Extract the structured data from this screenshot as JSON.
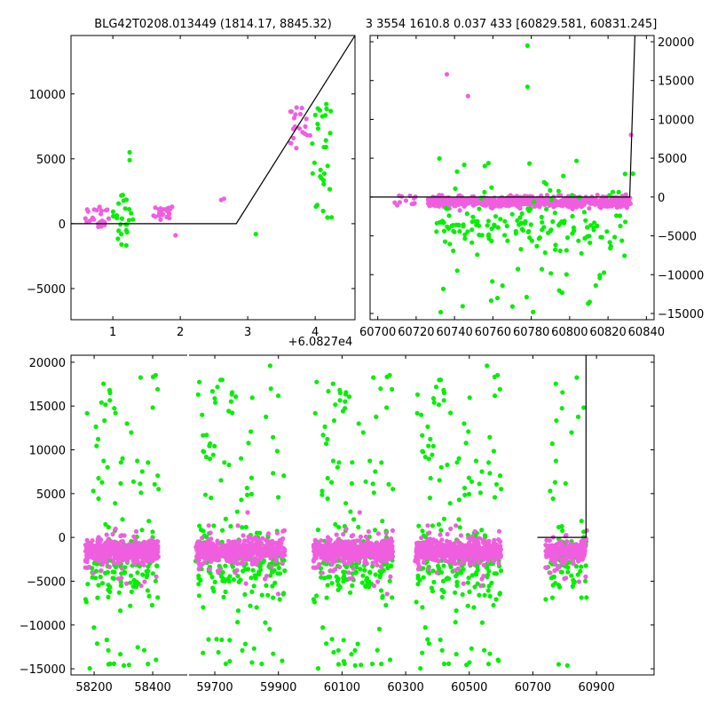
{
  "chart_data": [
    {
      "type": "scatter",
      "name": "top-left",
      "title": "BLG42T0208.013449 (1814.17, 8845.32)",
      "xlim": [
        0.38,
        4.59
      ],
      "ylim": [
        -7400,
        14500
      ],
      "xticks": [
        "1",
        "2",
        "3",
        "4"
      ],
      "xtick_values": [
        1,
        2,
        3,
        4
      ],
      "yticks": [
        "−5000",
        "0",
        "5000",
        "10000"
      ],
      "ytick_values": [
        -5000,
        0,
        5000,
        10000
      ],
      "x_offset_label": "+6.0827e4",
      "model_line": [
        [
          0.38,
          0
        ],
        [
          2.83,
          0
        ],
        [
          4.59,
          14500
        ]
      ],
      "clusters": [
        {
          "color": "pink",
          "x": [
            0.55,
            0.95
          ],
          "y": [
            -400,
            1300
          ],
          "n": 25
        },
        {
          "color": "green",
          "x": [
            1.0,
            1.3
          ],
          "y": [
            -1700,
            2400
          ],
          "n": 25
        },
        {
          "color": "pink",
          "x": [
            1.6,
            1.95
          ],
          "y": [
            300,
            1300
          ],
          "n": 22
        },
        {
          "color": "pink",
          "x": [
            2.6,
            2.65
          ],
          "y": [
            1500,
            2100
          ],
          "n": 2
        },
        {
          "color": "pink",
          "x": [
            3.6,
            3.95
          ],
          "y": [
            5800,
            9000
          ],
          "n": 20
        },
        {
          "color": "green",
          "x": [
            3.95,
            4.25
          ],
          "y": [
            200,
            9300
          ],
          "n": 30
        }
      ],
      "extra_points": [
        {
          "color": "green",
          "x": 1.25,
          "y": 5500
        },
        {
          "color": "green",
          "x": 1.25,
          "y": 4900
        },
        {
          "color": "green",
          "x": 3.12,
          "y": -800
        },
        {
          "color": "pink",
          "x": 1.93,
          "y": -900
        }
      ]
    },
    {
      "type": "scatter",
      "name": "top-right",
      "title": "3 3554 1610.8 0.037 433 [60829.581, 60831.245]",
      "xlim": [
        60696,
        60844
      ],
      "ylim": [
        -15800,
        20800
      ],
      "xticks": [
        "60700",
        "60720",
        "60740",
        "60760",
        "60780",
        "60800",
        "60820",
        "60840"
      ],
      "xtick_values": [
        60700,
        60720,
        60740,
        60760,
        60780,
        60800,
        60820,
        60840
      ],
      "yticks": [
        "−15000",
        "−10000",
        "−5000",
        "0",
        "5000",
        "10000",
        "15000",
        "20000"
      ],
      "ytick_values": [
        -15000,
        -10000,
        -5000,
        0,
        5000,
        10000,
        15000,
        20000
      ],
      "yaxis_side": "right",
      "model_line": [
        [
          60696,
          0
        ],
        [
          60831.3,
          0
        ],
        [
          60834,
          20800
        ]
      ],
      "clusters": [
        {
          "color": "pink",
          "x": [
            60708,
            60722
          ],
          "y": [
            -1200,
            300
          ],
          "n": 12
        },
        {
          "color": "green",
          "x": [
            60730,
            60832
          ],
          "y": [
            -15000,
            5000
          ],
          "n": 180
        },
        {
          "color": "pink",
          "x": [
            60726,
            60832
          ],
          "y": [
            -3000,
            800
          ],
          "n": 700
        }
      ],
      "extra_points": [
        {
          "color": "green",
          "x": 60778,
          "y": 19500
        },
        {
          "color": "green",
          "x": 60778,
          "y": 14200
        },
        {
          "color": "pink",
          "x": 60736,
          "y": 15800
        },
        {
          "color": "pink",
          "x": 60747,
          "y": 13000
        },
        {
          "color": "pink",
          "x": 60832,
          "y": 8000
        },
        {
          "color": "green",
          "x": 60833,
          "y": 3000
        }
      ]
    },
    {
      "type": "scatter",
      "name": "bottom",
      "broken_x": true,
      "segments": [
        {
          "xlim": [
            58121,
            58518
          ],
          "xticks": [
            "58200",
            "58400"
          ],
          "xtick_values": [
            58200,
            58400
          ]
        },
        {
          "xlim": [
            59619,
            61081
          ],
          "xticks": [
            "59700",
            "59900",
            "60100",
            "60300",
            "60500",
            "60700",
            "60900"
          ],
          "xtick_values": [
            59700,
            59900,
            60100,
            60300,
            60500,
            60700,
            60900
          ]
        }
      ],
      "ylim": [
        -15700,
        20800
      ],
      "yticks": [
        "−15000",
        "−10000",
        "−5000",
        "0",
        "5000",
        "10000",
        "15000",
        "20000"
      ],
      "ytick_values": [
        -15000,
        -10000,
        -5000,
        0,
        5000,
        10000,
        15000,
        20000
      ],
      "model_line": [
        [
          60714,
          0
        ],
        [
          60867,
          0
        ],
        [
          60867,
          20800
        ]
      ],
      "clusters": [
        {
          "seg": 0,
          "x": [
            58170,
            58420
          ],
          "n": 450
        },
        {
          "seg": 1,
          "x": [
            59640,
            59920
          ],
          "n": 500
        },
        {
          "seg": 1,
          "x": [
            60010,
            60260
          ],
          "n": 550
        },
        {
          "seg": 1,
          "x": [
            60330,
            60600
          ],
          "n": 550
        },
        {
          "seg": 1,
          "x": [
            60740,
            60870
          ],
          "n": 220
        }
      ]
    }
  ],
  "colors": {
    "pink": "#f05ee0",
    "green": "#00f000",
    "line": "#000000"
  }
}
